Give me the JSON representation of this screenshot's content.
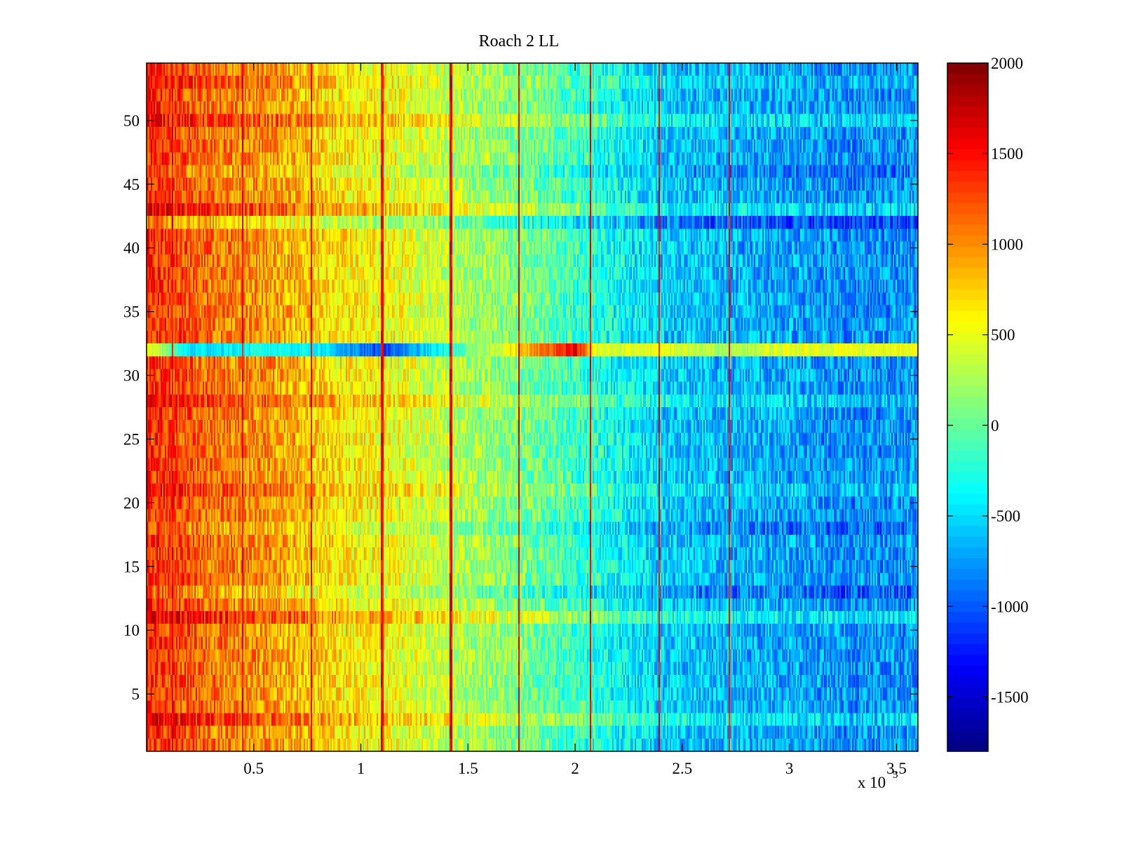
{
  "chart_data": {
    "type": "heatmap",
    "title": "Roach 2 LL",
    "xlabel": "",
    "ylabel": "",
    "x_range": [
      0,
      360000
    ],
    "y_range": [
      0.5,
      54.5
    ],
    "x_exponent_label": "x 10",
    "x_exponent_power": "5",
    "x_ticks": [
      {
        "value": 50000,
        "label": "0.5"
      },
      {
        "value": 100000,
        "label": "1"
      },
      {
        "value": 150000,
        "label": "1.5"
      },
      {
        "value": 200000,
        "label": "2"
      },
      {
        "value": 250000,
        "label": "2.5"
      },
      {
        "value": 300000,
        "label": "3"
      },
      {
        "value": 350000,
        "label": "3.5"
      }
    ],
    "y_ticks": [
      {
        "value": 5,
        "label": "5"
      },
      {
        "value": 10,
        "label": "10"
      },
      {
        "value": 15,
        "label": "15"
      },
      {
        "value": 20,
        "label": "20"
      },
      {
        "value": 25,
        "label": "25"
      },
      {
        "value": 30,
        "label": "30"
      },
      {
        "value": 35,
        "label": "35"
      },
      {
        "value": 40,
        "label": "40"
      },
      {
        "value": 45,
        "label": "45"
      },
      {
        "value": 50,
        "label": "50"
      }
    ],
    "colorbar": {
      "colormap": "jet",
      "range": [
        -1800,
        2000
      ],
      "ticks": [
        {
          "value": 2000,
          "label": "2000"
        },
        {
          "value": 1500,
          "label": "1500"
        },
        {
          "value": 1000,
          "label": "1000"
        },
        {
          "value": 500,
          "label": "500"
        },
        {
          "value": 0,
          "label": "0"
        },
        {
          "value": -500,
          "label": "-500"
        },
        {
          "value": -1000,
          "label": "-1000"
        },
        {
          "value": -1500,
          "label": "-1500"
        }
      ]
    },
    "grid": false,
    "rows": 54,
    "trend": [
      {
        "x": 0,
        "value": 1400
      },
      {
        "x": 30000,
        "value": 1100
      },
      {
        "x": 60000,
        "value": 950
      },
      {
        "x": 90000,
        "value": 650
      },
      {
        "x": 120000,
        "value": 500
      },
      {
        "x": 150000,
        "value": 250
      },
      {
        "x": 180000,
        "value": 50
      },
      {
        "x": 210000,
        "value": -250
      },
      {
        "x": 240000,
        "value": -550
      },
      {
        "x": 270000,
        "value": -650
      },
      {
        "x": 300000,
        "value": -700
      },
      {
        "x": 330000,
        "value": -800
      },
      {
        "x": 360000,
        "value": -750
      }
    ],
    "bright_vertical_lines_x": [
      12000,
      45000,
      77000,
      110000,
      142000,
      174000,
      207000,
      239000,
      272000
    ],
    "bright_line_value": 1800,
    "anomalous_row": {
      "row": 32,
      "profile": [
        {
          "x": 0,
          "value": 600
        },
        {
          "x": 20000,
          "value": -500
        },
        {
          "x": 60000,
          "value": -300
        },
        {
          "x": 80000,
          "value": -400
        },
        {
          "x": 110000,
          "value": -1100
        },
        {
          "x": 140000,
          "value": -300
        },
        {
          "x": 170000,
          "value": 600
        },
        {
          "x": 200000,
          "value": 1600
        },
        {
          "x": 210000,
          "value": 400
        },
        {
          "x": 240000,
          "value": 500
        },
        {
          "x": 270000,
          "value": 200
        },
        {
          "x": 300000,
          "value": 500
        },
        {
          "x": 360000,
          "value": 500
        }
      ]
    },
    "row_offsets": [
      {
        "row": 3,
        "offset": 250
      },
      {
        "row": 11,
        "offset": 300
      },
      {
        "row": 13,
        "offset": -200
      },
      {
        "row": 18,
        "offset": -150
      },
      {
        "row": 21,
        "offset": 150
      },
      {
        "row": 28,
        "offset": 200
      },
      {
        "row": 42,
        "offset": -300
      },
      {
        "row": 43,
        "offset": 250
      },
      {
        "row": 46,
        "offset": -150
      },
      {
        "row": 50,
        "offset": 200
      },
      {
        "row": 53,
        "offset": 100
      }
    ]
  }
}
